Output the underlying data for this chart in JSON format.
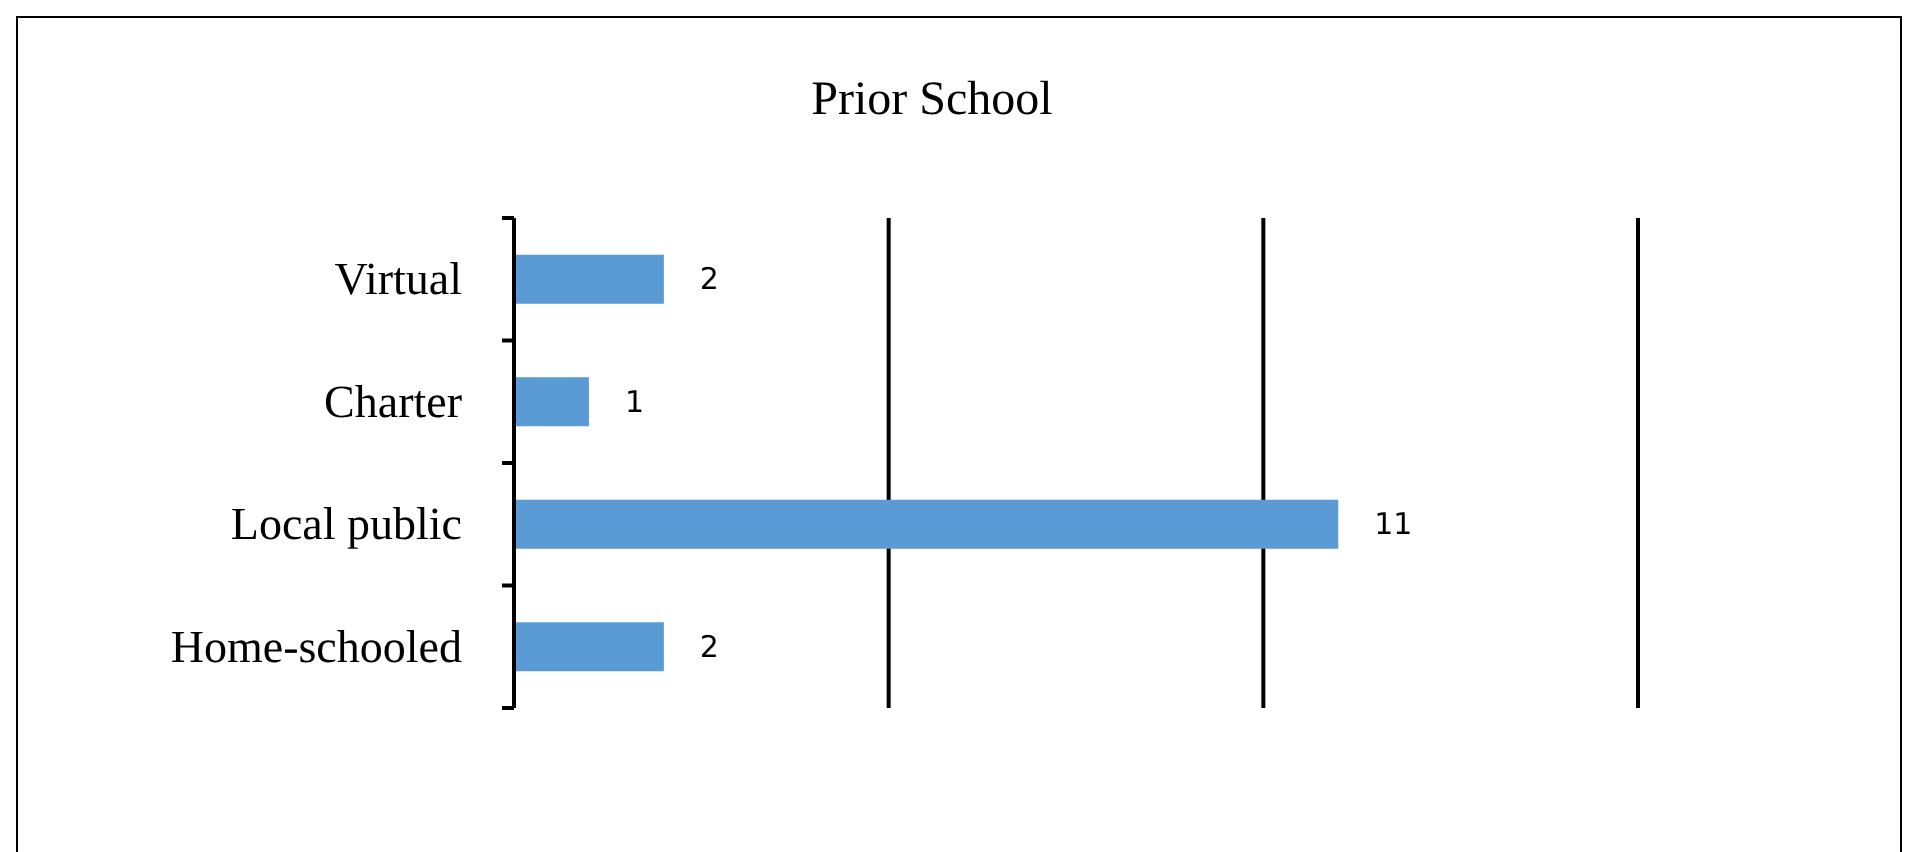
{
  "chart_data": {
    "type": "bar",
    "orientation": "horizontal",
    "title": "Prior School",
    "categories": [
      "Virtual",
      "Charter",
      "Local public",
      "Home-schooled"
    ],
    "values": [
      2,
      1,
      11,
      2
    ],
    "color": "#5b9bd5",
    "xlim": [
      0,
      15
    ],
    "xticks": [
      {
        "value": 0,
        "label": null
      },
      {
        "value": 5,
        "label": null
      },
      {
        "value": 10,
        "label": null
      },
      {
        "value": 15,
        "label": null
      }
    ],
    "grid": "x",
    "tick_labels": "y",
    "data_labels": true
  }
}
